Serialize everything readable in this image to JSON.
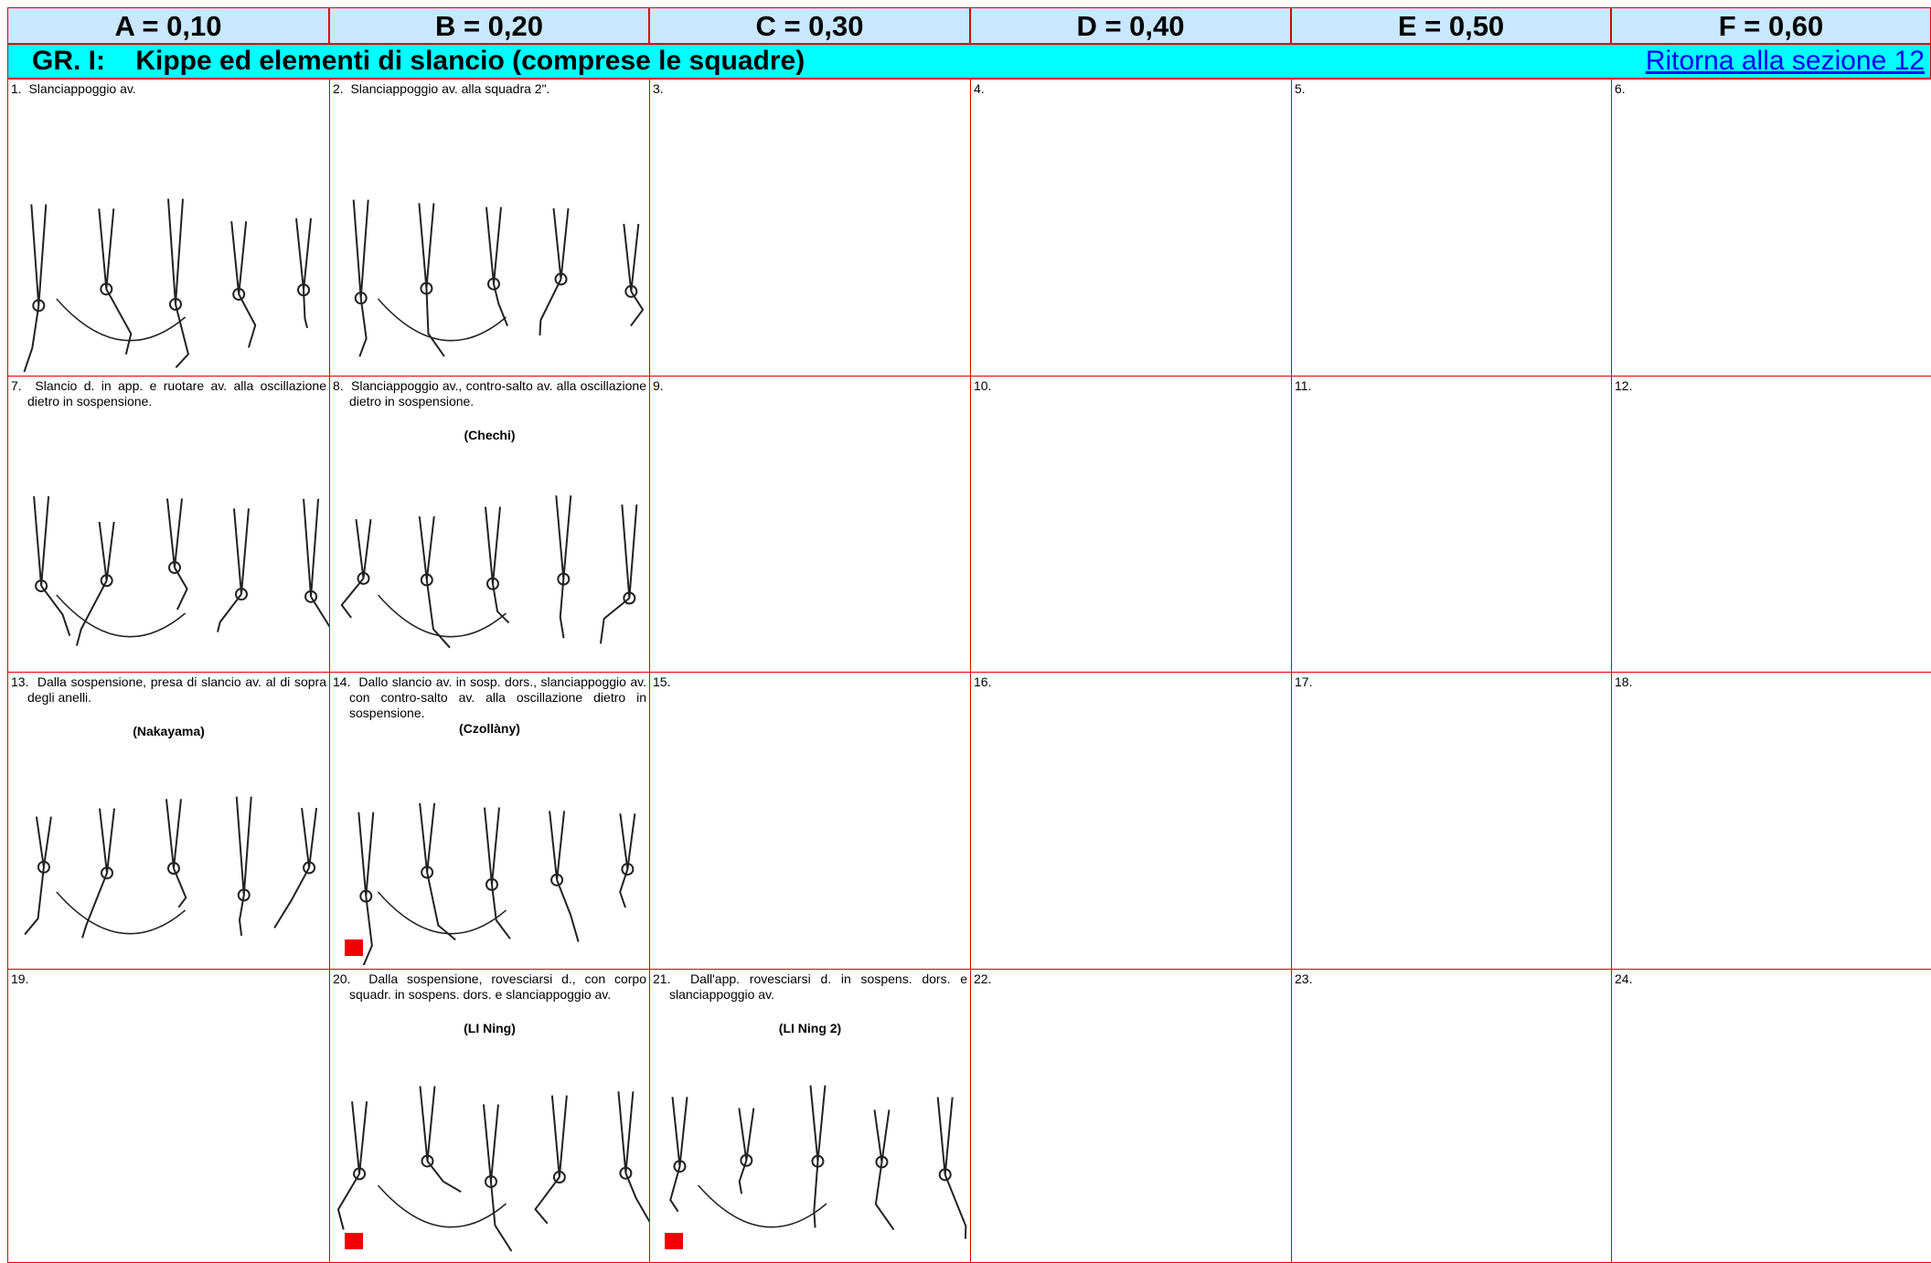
{
  "header": {
    "columns": [
      "A = 0,10",
      "B = 0,20",
      "C = 0,30",
      "D = 0,40",
      "E = 0,50",
      "F = 0,60"
    ]
  },
  "section": {
    "title": "GR. I:    Kippe ed elementi di slancio (comprese le squadre)",
    "link": "Ritorna alla sezione 12"
  },
  "table": {
    "rows": [
      {
        "cells": [
          {
            "number": "1.",
            "text": "Slanciappoggio av.",
            "figure": true
          },
          {
            "number": "2.",
            "text": "Slanciappoggio av. alla squadra 2\".",
            "figure": true
          },
          {
            "number": "3."
          },
          {
            "number": "4."
          },
          {
            "number": "5."
          },
          {
            "number": "6."
          }
        ]
      },
      {
        "cells": [
          {
            "number": "7.",
            "text": "Slancio d. in app. e ruotare av. alla oscillazione dietro in sospensione.",
            "figure": true
          },
          {
            "number": "8.",
            "text": "Slanciappoggio av., contro-salto av. alla oscillazione dietro in sospensione.",
            "name": "(Chechi)",
            "figure": true
          },
          {
            "number": "9."
          },
          {
            "number": "10."
          },
          {
            "number": "11."
          },
          {
            "number": "12."
          }
        ]
      },
      {
        "cells": [
          {
            "number": "13.",
            "text": "Dalla sospensione, presa di slancio av. al di sopra degli anelli.",
            "name": "(Nakayama)",
            "figure": true
          },
          {
            "number": "14.",
            "text": "Dallo slancio av. in sosp. dors., slanciappoggio av. con contro-salto av. alla oscillazione dietro in sospensione.",
            "name": "(Czollàny)",
            "figure": true,
            "marked": true
          },
          {
            "number": "15."
          },
          {
            "number": "16."
          },
          {
            "number": "17."
          },
          {
            "number": "18."
          }
        ]
      },
      {
        "cells": [
          {
            "number": "19."
          },
          {
            "number": "20.",
            "text": "Dalla sospensione, rovesciarsi d., con corpo squadr. in sospens. dors. e slanciappoggio av.",
            "name": "(LI Ning)",
            "figure": true,
            "marked": true
          },
          {
            "number": "21.",
            "text": "Dall'app. rovesciarsi d. in sospens. dors. e slanciappoggio av.",
            "name": "(LI Ning 2)",
            "figure": true,
            "marked": true
          },
          {
            "number": "22."
          },
          {
            "number": "23."
          },
          {
            "number": "24."
          }
        ]
      }
    ]
  }
}
